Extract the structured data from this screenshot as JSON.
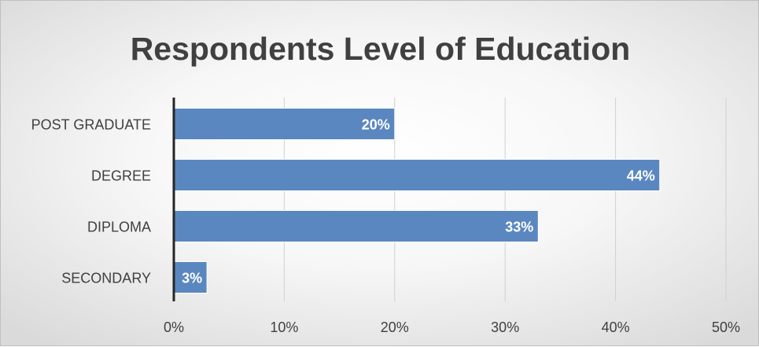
{
  "chart_data": {
    "type": "bar",
    "orientation": "horizontal",
    "title": "Respondents Level of Education",
    "categories": [
      "POST GRADUATE",
      "DEGREE",
      "DIPLOMA",
      "SECONDARY"
    ],
    "values": [
      20,
      44,
      33,
      3
    ],
    "data_labels": [
      "20%",
      "44%",
      "33%",
      "3%"
    ],
    "xlim": [
      0,
      50
    ],
    "x_ticks": [
      0,
      10,
      20,
      30,
      40,
      50
    ],
    "x_tick_labels": [
      "0%",
      "10%",
      "20%",
      "30%",
      "40%",
      "50%"
    ],
    "grid": true,
    "legend": "none",
    "bar_color": "#5a87c0"
  }
}
